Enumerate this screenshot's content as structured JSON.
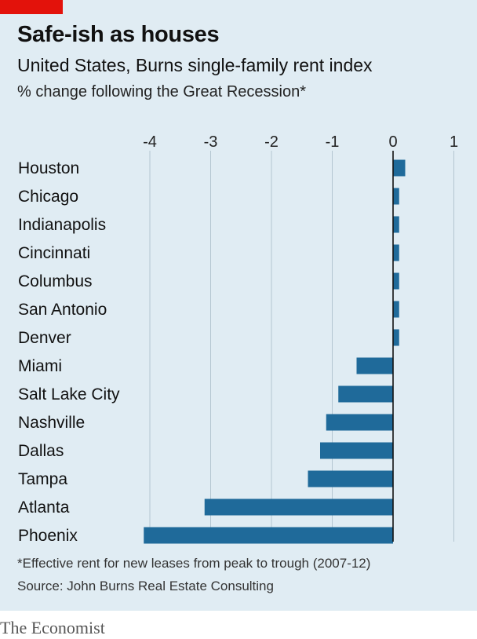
{
  "header": {
    "title": "Safe-ish as houses",
    "subtitle": "United States, Burns single-family rent index",
    "unit_line": "% change following the Great Recession*"
  },
  "footer": {
    "footnote": "*Effective rent for new leases from peak to trough (2007-12)",
    "source": "Source: John Burns Real Estate Consulting",
    "brand": "The Economist"
  },
  "colors": {
    "background": "#e0ecf3",
    "bar": "#1f6a9a",
    "accent": "#e3120b"
  },
  "chart_data": {
    "type": "bar",
    "orientation": "horizontal",
    "categories": [
      "Houston",
      "Chicago",
      "Indianapolis",
      "Cincinnati",
      "Columbus",
      "San Antonio",
      "Denver",
      "Miami",
      "Salt Lake City",
      "Nashville",
      "Dallas",
      "Tampa",
      "Atlanta",
      "Phoenix"
    ],
    "values": [
      0.2,
      0.1,
      0.1,
      0.1,
      0.1,
      0.1,
      0.1,
      -0.6,
      -0.9,
      -1.1,
      -1.2,
      -1.4,
      -3.1,
      -4.1
    ],
    "xlim": [
      -4,
      1
    ],
    "xticks": [
      "-4",
      "-3",
      "-2",
      "-1",
      "0",
      "1"
    ],
    "grid": true,
    "legend": "none"
  }
}
